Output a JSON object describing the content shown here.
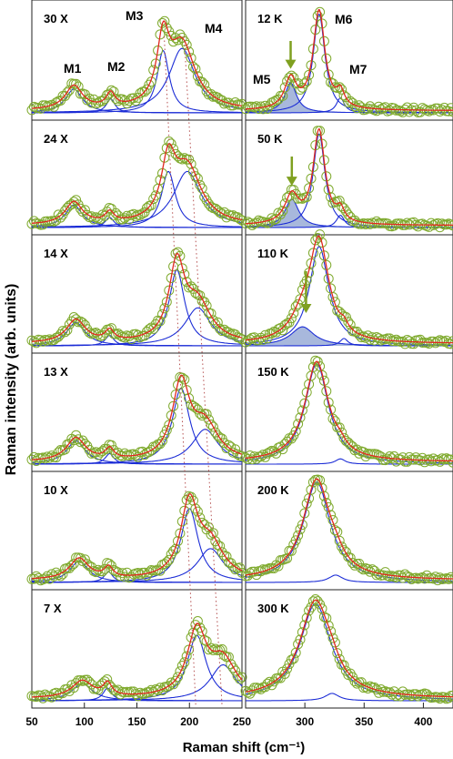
{
  "chart_data": {
    "type": "line",
    "ylabel": "Raman intensity (arb. units)",
    "xlabel": "Raman shift (cm⁻¹)",
    "grid": false,
    "colors": {
      "data": "#7faa2e",
      "fit": "#e0281e",
      "component": "#1c2dd6",
      "shade": "#a8b8dc",
      "arrow": "#7fa020",
      "dotted": "#b55050"
    },
    "left_panels": {
      "xlim": [
        50,
        250
      ],
      "xticks": [
        50,
        100,
        150,
        200,
        250
      ],
      "xtick_labels": [
        "50",
        "100",
        "150",
        "200",
        "250"
      ],
      "peaks": [
        {
          "name": "M1",
          "center": 90
        },
        {
          "name": "M2",
          "center": 125
        },
        {
          "name": "M3",
          "center": 178
        },
        {
          "name": "M4",
          "center": 200
        }
      ],
      "panels": [
        {
          "label": "30 X",
          "components": [
            {
              "c": 90,
              "w": 10,
              "a": 0.22
            },
            {
              "c": 125,
              "w": 5,
              "a": 0.13
            },
            {
              "c": 175,
              "w": 7,
              "a": 0.58
            },
            {
              "c": 193,
              "w": 15,
              "a": 0.6
            }
          ]
        },
        {
          "label": "24 X",
          "components": [
            {
              "c": 90,
              "w": 10,
              "a": 0.22
            },
            {
              "c": 124,
              "w": 5,
              "a": 0.1
            },
            {
              "c": 180,
              "w": 8,
              "a": 0.55
            },
            {
              "c": 198,
              "w": 16,
              "a": 0.55
            }
          ]
        },
        {
          "label": "14 X",
          "components": [
            {
              "c": 92,
              "w": 11,
              "a": 0.22
            },
            {
              "c": 124,
              "w": 5,
              "a": 0.1
            },
            {
              "c": 188,
              "w": 9,
              "a": 0.72
            },
            {
              "c": 208,
              "w": 15,
              "a": 0.36
            }
          ]
        },
        {
          "label": "13 X",
          "components": [
            {
              "c": 92,
              "w": 11,
              "a": 0.22
            },
            {
              "c": 124,
              "w": 5,
              "a": 0.1
            },
            {
              "c": 192,
              "w": 10,
              "a": 0.72
            },
            {
              "c": 215,
              "w": 15,
              "a": 0.33
            }
          ]
        },
        {
          "label": "10 X",
          "components": [
            {
              "c": 95,
              "w": 11,
              "a": 0.2
            },
            {
              "c": 123,
              "w": 5,
              "a": 0.1
            },
            {
              "c": 200,
              "w": 10,
              "a": 0.7
            },
            {
              "c": 220,
              "w": 15,
              "a": 0.32
            }
          ]
        },
        {
          "label": "7 X",
          "components": [
            {
              "c": 98,
              "w": 12,
              "a": 0.16
            },
            {
              "c": 122,
              "w": 5,
              "a": 0.12
            },
            {
              "c": 207,
              "w": 11,
              "a": 0.62
            },
            {
              "c": 232,
              "w": 15,
              "a": 0.34
            }
          ]
        }
      ],
      "dotted_lines": [
        {
          "x_top": 176,
          "x_bottom": 206
        },
        {
          "x_top": 195,
          "x_bottom": 231
        }
      ]
    },
    "right_panels": {
      "xlim": [
        250,
        425
      ],
      "xticks": [
        250,
        300,
        350,
        400
      ],
      "xtick_labels": [
        "",
        "300",
        "350",
        "400"
      ],
      "peaks": [
        {
          "name": "M5",
          "center": 288
        },
        {
          "name": "M6",
          "center": 312
        },
        {
          "name": "M7",
          "center": 330
        }
      ],
      "panels": [
        {
          "label": "12 K",
          "arrow": true,
          "components": [
            {
              "c": 288,
              "w": 6,
              "a": 0.28,
              "shaded": true
            },
            {
              "c": 312,
              "w": 6,
              "a": 0.92
            },
            {
              "c": 330,
              "w": 4,
              "a": 0.14
            }
          ]
        },
        {
          "label": "50 K",
          "arrow": true,
          "components": [
            {
              "c": 289,
              "w": 7,
              "a": 0.28,
              "shaded": true
            },
            {
              "c": 312,
              "w": 6,
              "a": 0.92
            },
            {
              "c": 330,
              "w": 4,
              "a": 0.12
            }
          ]
        },
        {
          "label": "110 K",
          "arrow": true,
          "components": [
            {
              "c": 298,
              "w": 12,
              "a": 0.18,
              "shaded": true
            },
            {
              "c": 312,
              "w": 10,
              "a": 0.94
            },
            {
              "c": 333,
              "w": 4,
              "a": 0.07
            }
          ]
        },
        {
          "label": "150 K",
          "arrow": false,
          "components": [
            {
              "c": 310,
              "w": 12,
              "a": 0.95
            },
            {
              "c": 330,
              "w": 5,
              "a": 0.05
            }
          ]
        },
        {
          "label": "200 K",
          "arrow": false,
          "components": [
            {
              "c": 310,
              "w": 14,
              "a": 0.95
            },
            {
              "c": 326,
              "w": 7,
              "a": 0.07
            }
          ]
        },
        {
          "label": "300 K",
          "arrow": false,
          "components": [
            {
              "c": 309,
              "w": 16,
              "a": 0.92
            },
            {
              "c": 323,
              "w": 7,
              "a": 0.07
            }
          ]
        }
      ]
    }
  }
}
